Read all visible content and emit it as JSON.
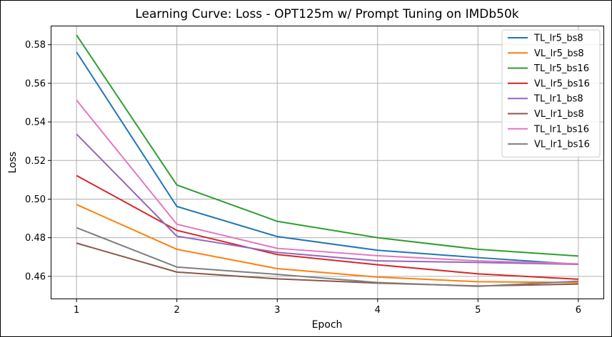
{
  "chart_data": {
    "type": "line",
    "title": "Learning Curve: Loss - OPT125m w/ Prompt Tuning on IMDb50k",
    "xlabel": "Epoch",
    "ylabel": "Loss",
    "x": [
      1,
      2,
      3,
      4,
      5,
      6
    ],
    "xlim": [
      0.75,
      6.25
    ],
    "ylim": [
      0.4485,
      0.5895
    ],
    "xticks": [
      1,
      2,
      3,
      4,
      5,
      6
    ],
    "yticks": [
      0.46,
      0.48,
      0.5,
      0.52,
      0.54,
      0.56,
      0.58
    ],
    "ytick_labels": [
      "0.46",
      "0.48",
      "0.50",
      "0.52",
      "0.54",
      "0.56",
      "0.58"
    ],
    "grid": true,
    "legend_position": "top-right",
    "series": [
      {
        "name": "TL_lr5_bs8",
        "color": "#1f77b4",
        "values": [
          0.5762,
          0.4962,
          0.4806,
          0.4735,
          0.4697,
          0.4662
        ]
      },
      {
        "name": "VL_lr5_bs8",
        "color": "#ff7f0e",
        "values": [
          0.4972,
          0.474,
          0.464,
          0.4596,
          0.4572,
          0.4568
        ]
      },
      {
        "name": "TL_lr5_bs16",
        "color": "#2ca02c",
        "values": [
          0.585,
          0.5073,
          0.4885,
          0.48,
          0.474,
          0.4705
        ]
      },
      {
        "name": "VL_lr5_bs16",
        "color": "#d62728",
        "values": [
          0.5122,
          0.4838,
          0.4713,
          0.466,
          0.4613,
          0.4585
        ]
      },
      {
        "name": "TL_lr1_bs8",
        "color": "#9467bd",
        "values": [
          0.5337,
          0.4808,
          0.4724,
          0.468,
          0.4672,
          0.4662
        ]
      },
      {
        "name": "VL_lr1_bs8",
        "color": "#8c564b",
        "values": [
          0.4772,
          0.4622,
          0.4587,
          0.4565,
          0.455,
          0.456
        ]
      },
      {
        "name": "TL_lr1_bs16",
        "color": "#e377c2",
        "values": [
          0.5513,
          0.487,
          0.4745,
          0.4707,
          0.468,
          0.4665
        ]
      },
      {
        "name": "VL_lr1_bs16",
        "color": "#7f7f7f",
        "values": [
          0.4852,
          0.4648,
          0.461,
          0.4568,
          0.4548,
          0.4575
        ]
      }
    ]
  }
}
